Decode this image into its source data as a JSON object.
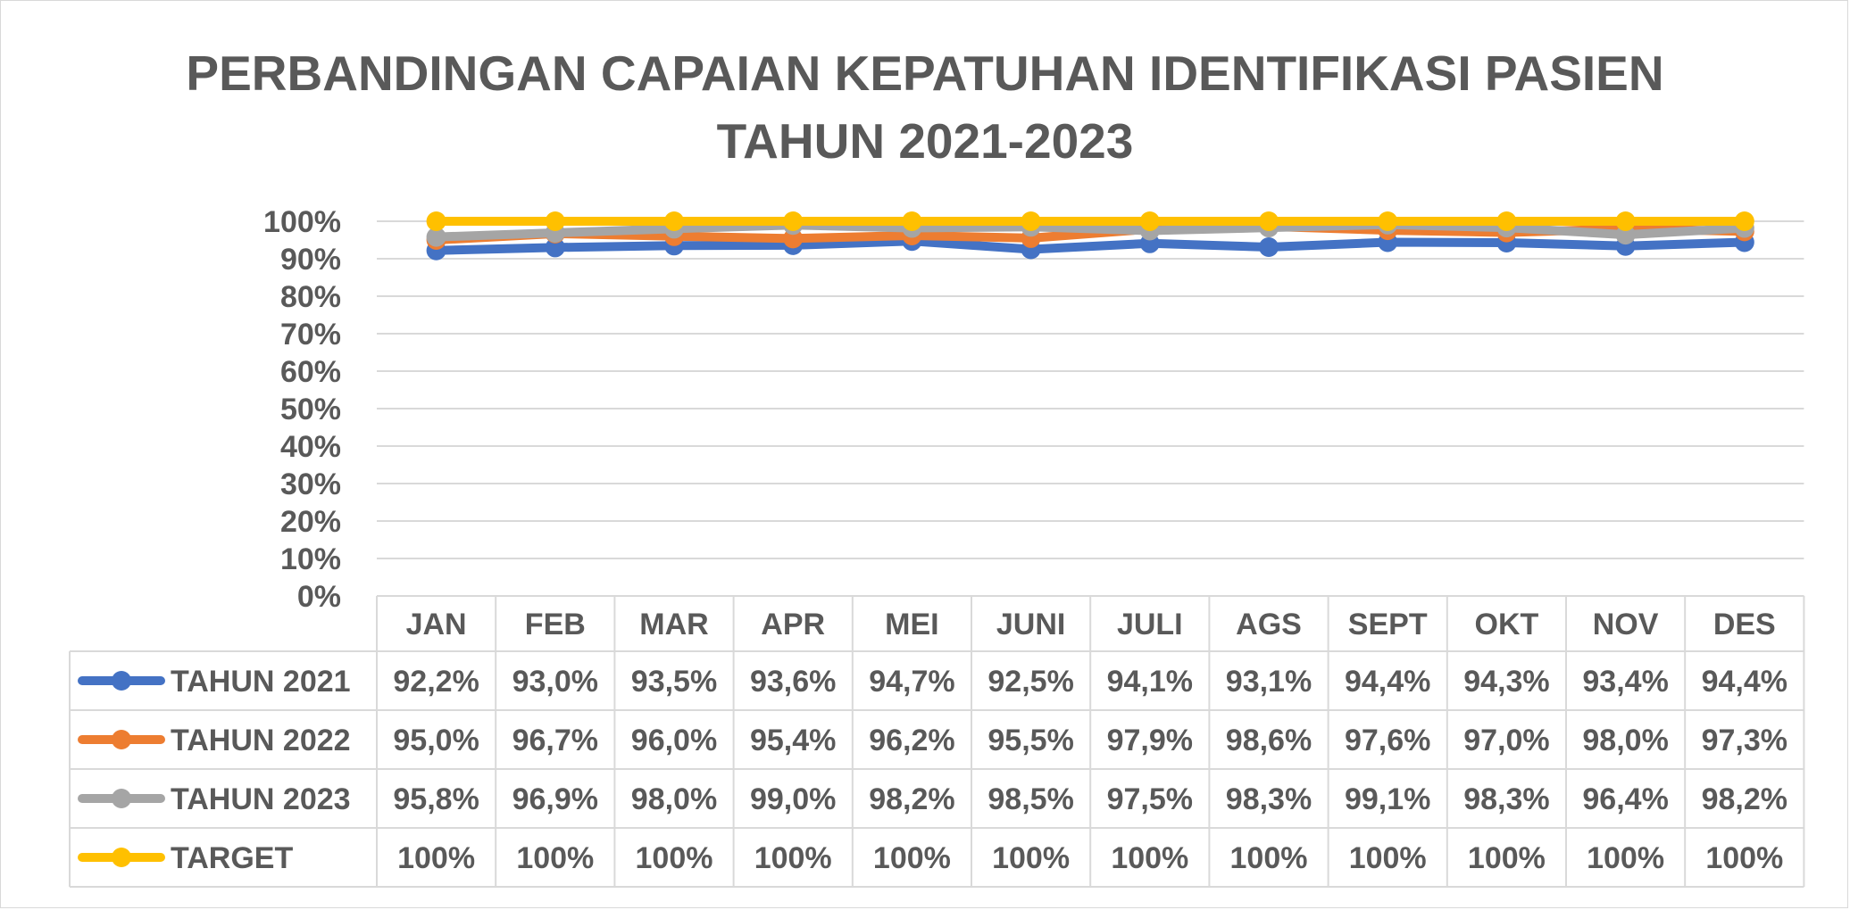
{
  "chart_data": {
    "type": "line",
    "title_line1": "PERBANDINGAN CAPAIAN KEPATUHAN IDENTIFIKASI PASIEN",
    "title_line2": "TAHUN 2021-2023",
    "categories": [
      "JAN",
      "FEB",
      "MAR",
      "APR",
      "MEI",
      "JUNI",
      "JULI",
      "AGS",
      "SEPT",
      "OKT",
      "NOV",
      "DES"
    ],
    "ylim": [
      0,
      100
    ],
    "y_ticks": [
      "0%",
      "10%",
      "20%",
      "30%",
      "40%",
      "50%",
      "60%",
      "70%",
      "80%",
      "90%",
      "100%"
    ],
    "grid": true,
    "legend": "data-table-left",
    "series": [
      {
        "name": "TAHUN 2021",
        "color": "#4472C4",
        "values": [
          92.2,
          93.0,
          93.5,
          93.6,
          94.7,
          92.5,
          94.1,
          93.1,
          94.4,
          94.3,
          93.4,
          94.4
        ],
        "labels": [
          "92,2%",
          "93,0%",
          "93,5%",
          "93,6%",
          "94,7%",
          "92,5%",
          "94,1%",
          "93,1%",
          "94,4%",
          "94,3%",
          "93,4%",
          "94,4%"
        ]
      },
      {
        "name": "TAHUN 2022",
        "color": "#ED7D31",
        "values": [
          95.0,
          96.7,
          96.0,
          95.4,
          96.2,
          95.5,
          97.9,
          98.6,
          97.6,
          97.0,
          98.0,
          97.3
        ],
        "labels": [
          "95,0%",
          "96,7%",
          "96,0%",
          "95,4%",
          "96,2%",
          "95,5%",
          "97,9%",
          "98,6%",
          "97,6%",
          "97,0%",
          "98,0%",
          "97,3%"
        ]
      },
      {
        "name": "TAHUN 2023",
        "color": "#A5A5A5",
        "values": [
          95.8,
          96.9,
          98.0,
          99.0,
          98.2,
          98.5,
          97.5,
          98.3,
          99.1,
          98.3,
          96.4,
          98.2
        ],
        "labels": [
          "95,8%",
          "96,9%",
          "98,0%",
          "99,0%",
          "98,2%",
          "98,5%",
          "97,5%",
          "98,3%",
          "99,1%",
          "98,3%",
          "96,4%",
          "98,2%"
        ]
      },
      {
        "name": "TARGET",
        "color": "#FFC000",
        "values": [
          100,
          100,
          100,
          100,
          100,
          100,
          100,
          100,
          100,
          100,
          100,
          100
        ],
        "labels": [
          "100%",
          "100%",
          "100%",
          "100%",
          "100%",
          "100%",
          "100%",
          "100%",
          "100%",
          "100%",
          "100%",
          "100%"
        ]
      }
    ]
  }
}
